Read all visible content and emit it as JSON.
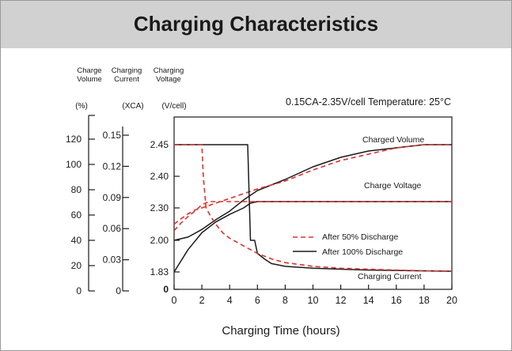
{
  "page_title": "Charging Characteristics",
  "condition": "0.15CA-2.35V/cell  Temperature: 25°C",
  "chart_data": {
    "type": "line",
    "xlabel": "Charging Time (hours)",
    "x_ticks": [
      "0",
      "2",
      "4",
      "6",
      "8",
      "10",
      "12",
      "14",
      "16",
      "18",
      "20"
    ],
    "xlim": [
      0,
      20
    ],
    "axes": [
      {
        "id": "volume",
        "header": [
          "Charge",
          "Volume"
        ],
        "unit": "(%)",
        "ticks": [
          "0",
          "20",
          "40",
          "60",
          "80",
          "100",
          "120"
        ],
        "lim": [
          0,
          120
        ]
      },
      {
        "id": "current",
        "header": [
          "Charging",
          "Current"
        ],
        "unit": "(XCA)",
        "ticks": [
          "0",
          "0.03",
          "0.06",
          "0.09",
          "0.12",
          "0.15"
        ],
        "lim": [
          0,
          0.15
        ]
      },
      {
        "id": "voltage",
        "header": [
          "Charging",
          "Voltage"
        ],
        "unit": "(V/cell)",
        "ticks": [
          "0",
          "1.83",
          "2.00",
          "2.30",
          "2.40",
          "2.45"
        ]
      }
    ],
    "legend": [
      {
        "label": "After 50% Discharge",
        "style": "dashed",
        "color": "#e03030"
      },
      {
        "label": "After 100%  Discharge",
        "style": "solid",
        "color": "#1a1a1a"
      }
    ],
    "annotations": [
      "Charged Volume",
      "Charge Voltage",
      "Charging Current"
    ],
    "series": [
      {
        "curve": "charged_volume",
        "discharge": "100%",
        "x": [
          0,
          1,
          2,
          3,
          4,
          5,
          6,
          8,
          10,
          12,
          14,
          16,
          18,
          20
        ],
        "y": [
          2.0,
          2.03,
          2.1,
          2.19,
          2.27,
          2.325,
          2.355,
          2.39,
          2.415,
          2.43,
          2.44,
          2.445,
          2.45,
          2.45
        ]
      },
      {
        "curve": "charged_volume",
        "discharge": "50%",
        "x": [
          0,
          0.5,
          1,
          1.5,
          2,
          3,
          4,
          5,
          6,
          8,
          10,
          12,
          14,
          16,
          18,
          20
        ],
        "y": [
          2.15,
          2.2,
          2.245,
          2.28,
          2.3,
          2.315,
          2.33,
          2.345,
          2.36,
          2.385,
          2.41,
          2.425,
          2.435,
          2.445,
          2.45,
          2.45
        ]
      },
      {
        "curve": "charge_voltage",
        "discharge": "100%",
        "x": [
          0,
          1,
          2,
          3,
          4,
          5,
          5.5,
          6,
          8,
          10,
          12,
          14,
          16,
          18,
          20
        ],
        "y": [
          1.83,
          1.95,
          2.07,
          2.17,
          2.24,
          2.3,
          2.315,
          2.32,
          2.32,
          2.32,
          2.32,
          2.32,
          2.32,
          2.32,
          2.32
        ]
      },
      {
        "curve": "charge_voltage",
        "discharge": "50%",
        "x": [
          0,
          0.5,
          1,
          1.5,
          2,
          2.5,
          3,
          4,
          6,
          8,
          10,
          12,
          14,
          16,
          18,
          20
        ],
        "y": [
          2.09,
          2.16,
          2.22,
          2.27,
          2.31,
          2.32,
          2.32,
          2.32,
          2.32,
          2.32,
          2.32,
          2.32,
          2.32,
          2.32,
          2.32,
          2.32
        ]
      },
      {
        "curve": "charging_current",
        "discharge": "100%",
        "x": [
          0,
          5.3,
          5.5,
          5.8,
          6,
          6.5,
          7,
          8,
          9,
          10,
          12,
          14,
          16,
          18,
          20
        ],
        "y": [
          2.45,
          2.45,
          2.0,
          2.0,
          1.93,
          1.9,
          1.875,
          1.86,
          1.855,
          1.85,
          1.845,
          1.84,
          1.838,
          1.836,
          1.834
        ]
      },
      {
        "curve": "charging_current",
        "discharge": "50%",
        "x": [
          0,
          1.5,
          2.0,
          2.1,
          2.3,
          2.6,
          3,
          3.5,
          4,
          5,
          6,
          7,
          8,
          10,
          12,
          14,
          16,
          18,
          20
        ],
        "y": [
          2.45,
          2.45,
          2.45,
          2.4,
          2.3,
          2.23,
          2.15,
          2.07,
          2.02,
          1.97,
          1.93,
          1.9,
          1.88,
          1.86,
          1.85,
          1.845,
          1.84,
          1.836,
          1.834
        ]
      }
    ]
  }
}
